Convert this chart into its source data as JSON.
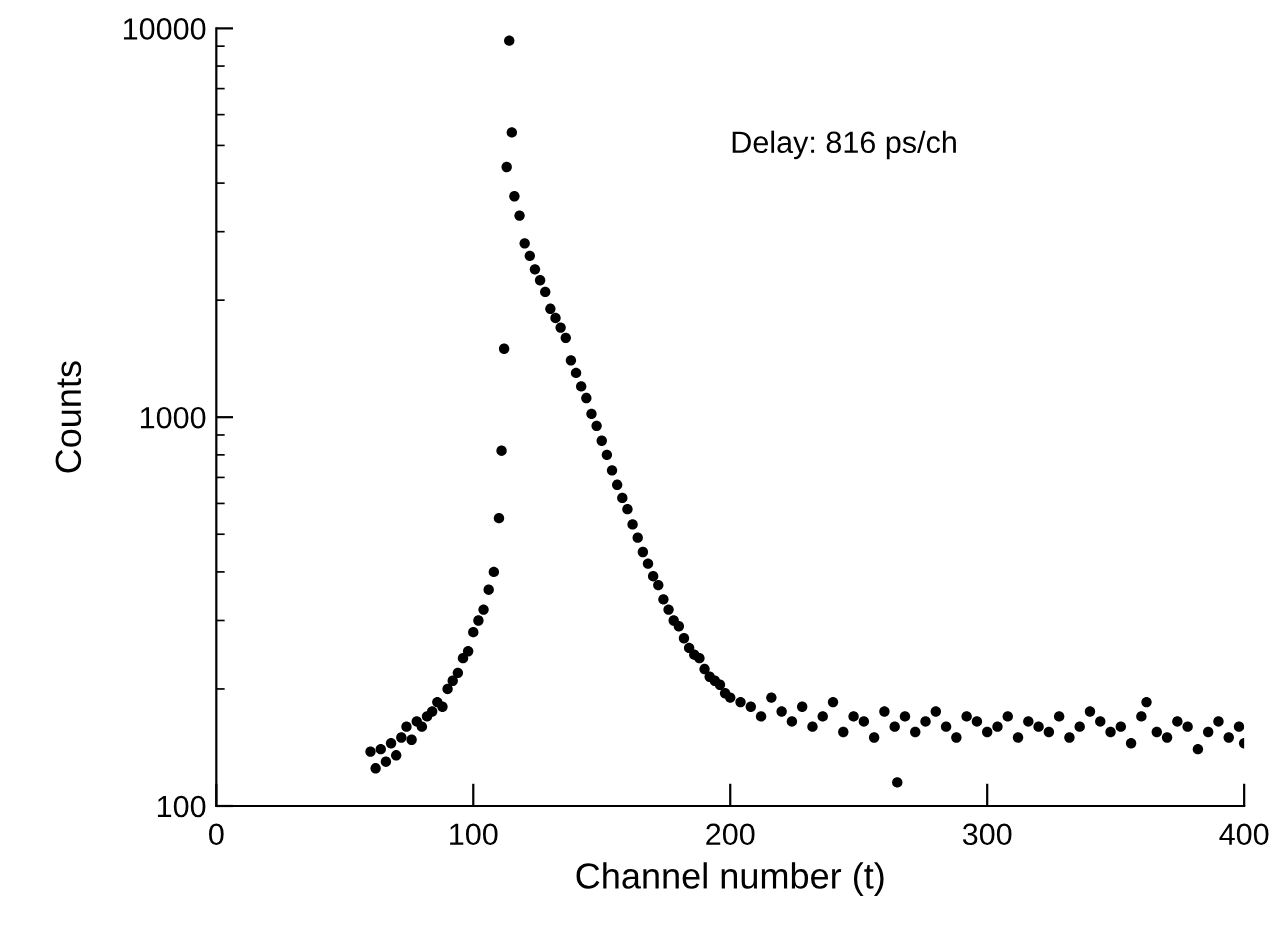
{
  "chart_data": {
    "type": "scatter",
    "xlabel": "Channel number (t)",
    "ylabel": "Counts",
    "annotations": [
      "Delay: 816 ps/ch"
    ],
    "log": "y",
    "marker": "circle",
    "grid": false,
    "xlim": [
      0,
      400
    ],
    "ylim": [
      100,
      10000
    ],
    "xticks": [
      0,
      100,
      200,
      300,
      400
    ],
    "yticks": [
      100,
      1000,
      10000
    ],
    "series": [
      {
        "color": "#000000",
        "x": [
          60,
          62,
          64,
          66,
          68,
          70,
          72,
          74,
          76,
          78,
          80,
          82,
          84,
          86,
          88,
          90,
          92,
          94,
          96,
          98,
          100,
          102,
          104,
          106,
          108,
          110,
          111,
          112,
          113,
          114,
          115,
          116,
          118,
          120,
          122,
          124,
          126,
          128,
          130,
          132,
          134,
          136,
          138,
          140,
          142,
          144,
          146,
          148,
          150,
          152,
          154,
          156,
          158,
          160,
          162,
          164,
          166,
          168,
          170,
          172,
          174,
          176,
          178,
          180,
          182,
          184,
          186,
          188,
          190,
          192,
          194,
          196,
          198,
          200,
          204,
          208,
          212,
          216,
          220,
          224,
          228,
          232,
          236,
          240,
          244,
          248,
          252,
          256,
          260,
          264,
          265,
          268,
          272,
          276,
          280,
          284,
          288,
          292,
          296,
          300,
          304,
          308,
          312,
          316,
          320,
          324,
          328,
          332,
          336,
          340,
          344,
          348,
          352,
          356,
          360,
          362,
          366,
          370,
          374,
          378,
          382,
          386,
          390,
          394,
          398,
          400
        ],
        "values": [
          138,
          125,
          140,
          130,
          145,
          135,
          150,
          160,
          148,
          165,
          160,
          170,
          175,
          185,
          180,
          200,
          210,
          220,
          240,
          250,
          280,
          300,
          320,
          360,
          400,
          550,
          820,
          1500,
          4400,
          9300,
          5400,
          3700,
          3300,
          2800,
          2600,
          2400,
          2250,
          2100,
          1900,
          1800,
          1700,
          1600,
          1400,
          1300,
          1200,
          1120,
          1020,
          950,
          870,
          800,
          730,
          670,
          620,
          580,
          530,
          490,
          450,
          420,
          390,
          370,
          340,
          320,
          300,
          290,
          270,
          255,
          245,
          240,
          225,
          215,
          210,
          205,
          195,
          190,
          185,
          180,
          170,
          190,
          175,
          165,
          180,
          160,
          170,
          185,
          155,
          170,
          165,
          150,
          175,
          160,
          115,
          170,
          155,
          165,
          175,
          160,
          150,
          170,
          165,
          155,
          160,
          170,
          150,
          165,
          160,
          155,
          170,
          150,
          160,
          175,
          165,
          155,
          160,
          145,
          170,
          185,
          155,
          150,
          165,
          160,
          140,
          155,
          165,
          150,
          160,
          145
        ]
      }
    ]
  }
}
